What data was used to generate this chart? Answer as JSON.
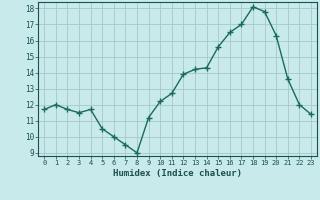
{
  "x": [
    0,
    1,
    2,
    3,
    4,
    5,
    6,
    7,
    8,
    9,
    10,
    11,
    12,
    13,
    14,
    15,
    16,
    17,
    18,
    19,
    20,
    21,
    22,
    23
  ],
  "y": [
    11.7,
    12.0,
    11.7,
    11.5,
    11.7,
    10.5,
    10.0,
    9.5,
    9.0,
    11.2,
    12.2,
    12.7,
    13.9,
    14.2,
    14.3,
    15.6,
    16.5,
    17.0,
    18.1,
    17.8,
    16.3,
    13.6,
    12.0,
    11.4
  ],
  "xlabel": "Humidex (Indice chaleur)",
  "ylim": [
    8.8,
    18.4
  ],
  "xlim": [
    -0.5,
    23.5
  ],
  "yticks": [
    9,
    10,
    11,
    12,
    13,
    14,
    15,
    16,
    17,
    18
  ],
  "xticks": [
    0,
    1,
    2,
    3,
    4,
    5,
    6,
    7,
    8,
    9,
    10,
    11,
    12,
    13,
    14,
    15,
    16,
    17,
    18,
    19,
    20,
    21,
    22,
    23
  ],
  "line_color": "#1a6b5a",
  "marker_color": "#1a6b5a",
  "bg_color": "#c8eaea",
  "grid_color": "#a8c8c8",
  "tick_label_color": "#1a5050",
  "xlabel_color": "#1a5050"
}
